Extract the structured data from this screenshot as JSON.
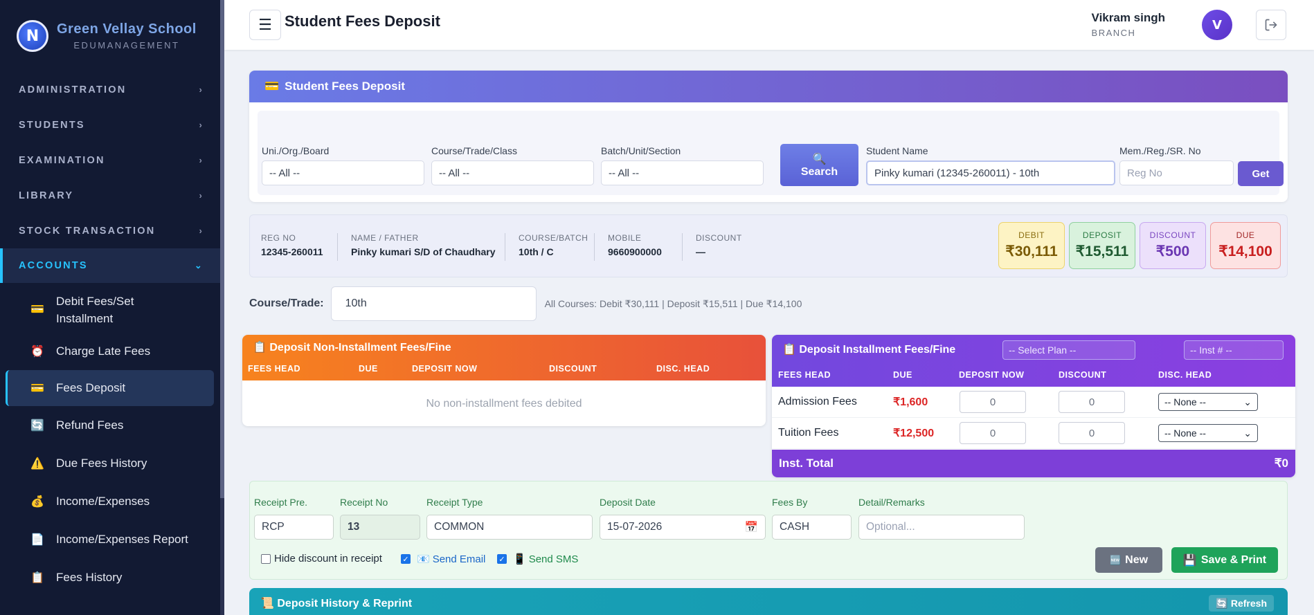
{
  "brand": {
    "logo_letter": "N",
    "name": "Green Vellay School",
    "subtitle": "EDUMANAGEMENT"
  },
  "sidebar": {
    "sections": [
      {
        "label": "ADMINISTRATION"
      },
      {
        "label": "STUDENTS"
      },
      {
        "label": "EXAMINATION"
      },
      {
        "label": "LIBRARY"
      },
      {
        "label": "STOCK TRANSACTION"
      },
      {
        "label": "ACCOUNTS"
      }
    ],
    "account_items": [
      {
        "label": "Debit Fees/Set Installment",
        "icon": "card-icon"
      },
      {
        "label": "Charge Late Fees",
        "icon": "alarm-clock-icon"
      },
      {
        "label": "Fees Deposit",
        "icon": "card-icon"
      },
      {
        "label": "Refund Fees",
        "icon": "refresh-icon"
      },
      {
        "label": "Due Fees History",
        "icon": "warning-icon"
      },
      {
        "label": "Income/Expenses",
        "icon": "money-bag-icon"
      },
      {
        "label": "Income/Expenses Report",
        "icon": "report-icon"
      },
      {
        "label": "Fees History",
        "icon": "clipboard-icon"
      }
    ]
  },
  "header": {
    "menu_glyph": "☰",
    "title": "Student Fees Deposit",
    "user_name": "Vikram singh",
    "user_role": "BRANCH",
    "avatar_letter": "V"
  },
  "deposit_card": {
    "title": "Student Fees Deposit",
    "filters": {
      "board_label": "Uni./Org./Board",
      "board_value": "-- All --",
      "course_label": "Course/Trade/Class",
      "course_value": "-- All --",
      "batch_label": "Batch/Unit/Section",
      "batch_value": "-- All --",
      "search_label": "Search",
      "student_label": "Student Name",
      "student_value": "Pinky kumari (12345-260011) - 10th",
      "reg_label": "Mem./Reg./SR. No",
      "reg_placeholder": "Reg No",
      "get_label": "Get"
    }
  },
  "student_info": {
    "reg_no_label": "REG NO",
    "reg_no": "12345-260011",
    "name_label": "NAME / FATHER",
    "name": "Pinky kumari S/D of Chaudhary",
    "course_label": "COURSE/BATCH",
    "course": "10th / C",
    "mobile_label": "MOBILE",
    "mobile": "9660900000",
    "discount_label": "DISCOUNT",
    "discount": "—"
  },
  "stats": {
    "debit_label": "DEBIT",
    "debit": "₹30,111",
    "deposit_label": "DEPOSIT",
    "deposit": "₹15,511",
    "discount_label": "DISCOUNT",
    "discount": "₹500",
    "due_label": "DUE",
    "due": "₹14,100"
  },
  "course_trade": {
    "label": "Course/Trade:",
    "value": "10th",
    "summary": "All Courses: Debit ₹30,111 | Deposit ₹15,511 | Due ₹14,100"
  },
  "non_installment": {
    "title": "Deposit Non-Installment Fees/Fine",
    "columns": [
      "FEES HEAD",
      "DUE",
      "DEPOSIT NOW",
      "DISCOUNT",
      "DISC. HEAD"
    ],
    "empty_text": "No non-installment fees debited"
  },
  "installment": {
    "title": "Deposit Installment Fees/Fine",
    "plan_placeholder": "-- Select Plan --",
    "inst_placeholder": "-- Inst # --",
    "columns": [
      "FEES HEAD",
      "DUE",
      "DEPOSIT NOW",
      "DISCOUNT",
      "DISC. HEAD"
    ],
    "rows": [
      {
        "head": "Admission Fees",
        "due": "₹1,600",
        "deposit": "0",
        "discount": "0",
        "disc_head": "-- None --"
      },
      {
        "head": "Tuition Fees",
        "due": "₹12,500",
        "deposit": "0",
        "discount": "0",
        "disc_head": "-- None --"
      }
    ],
    "total_label": "Inst. Total",
    "total_value": "₹0"
  },
  "receipt": {
    "prefix_label": "Receipt Pre.",
    "prefix_value": "RCP",
    "no_label": "Receipt No",
    "no_value": "13",
    "type_label": "Receipt Type",
    "type_value": "COMMON",
    "date_label": "Deposit Date",
    "date_value": "15-07-2026",
    "fees_by_label": "Fees By",
    "fees_by_value": "CASH",
    "remarks_label": "Detail/Remarks",
    "remarks_placeholder": "Optional...",
    "hide_discount_label": "Hide discount in receipt",
    "send_email_label": "Send Email",
    "send_sms_label": "Send SMS",
    "new_label": "New",
    "save_label": "Save & Print"
  },
  "history": {
    "title": "Deposit History & Reprint",
    "refresh_label": "Refresh"
  },
  "colors": {
    "sidebar_bg": "#121a33",
    "accent_cyan": "#27c3ff",
    "debit": "#fdf3c4",
    "deposit": "#d9f2dd",
    "discount_stat": "#ece0fb",
    "due": "#fde2e2"
  }
}
